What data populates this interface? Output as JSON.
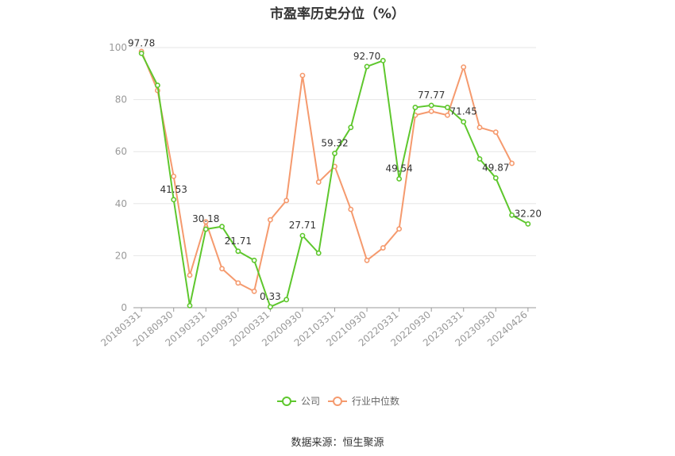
{
  "chart_data": {
    "type": "line",
    "title": "市盈率历史分位（%）",
    "x": [
      "20180331",
      "20180630",
      "20180930",
      "20181231",
      "20190331",
      "20190630",
      "20190930",
      "20191231",
      "20200331",
      "20200630",
      "20200930",
      "20201231",
      "20210331",
      "20210630",
      "20210930",
      "20211231",
      "20220331",
      "20220630",
      "20220930",
      "20221231",
      "20230331",
      "20230630",
      "20230930",
      "20231231",
      "20240426"
    ],
    "x_tick_labels": [
      "20180331",
      "20180930",
      "20190331",
      "20190930",
      "20200331",
      "20200930",
      "20210331",
      "20210930",
      "20220331",
      "20220930",
      "20230331",
      "20230930",
      "20240426"
    ],
    "ylim": [
      0,
      100
    ],
    "y_ticks": [
      0,
      20,
      40,
      60,
      80,
      100
    ],
    "grid": true,
    "series": [
      {
        "name": "公司",
        "color": "#5ec72d",
        "values": [
          97.78,
          85.5,
          41.53,
          0.8,
          30.18,
          31.2,
          21.71,
          18.2,
          0.33,
          3.1,
          27.71,
          21.0,
          59.32,
          69.3,
          92.7,
          95.0,
          49.54,
          77.0,
          77.77,
          77.0,
          71.45,
          57.2,
          49.87,
          35.6,
          32.2
        ]
      },
      {
        "name": "行业中位数",
        "color": "#f59a6e",
        "values": [
          98.5,
          83.5,
          50.5,
          12.5,
          33.0,
          15.0,
          9.5,
          6.3,
          33.8,
          41.2,
          89.3,
          48.3,
          54.3,
          37.8,
          18.2,
          23.0,
          30.3,
          74.0,
          75.5,
          74.0,
          92.5,
          69.3,
          67.5,
          55.5,
          null
        ]
      }
    ],
    "data_labels": [
      {
        "series": 0,
        "index": 0,
        "text": "97.78"
      },
      {
        "series": 0,
        "index": 2,
        "text": "41.53"
      },
      {
        "series": 0,
        "index": 4,
        "text": "30.18"
      },
      {
        "series": 0,
        "index": 6,
        "text": "21.71"
      },
      {
        "series": 0,
        "index": 8,
        "text": "0.33"
      },
      {
        "series": 0,
        "index": 10,
        "text": "27.71"
      },
      {
        "series": 0,
        "index": 12,
        "text": "59.32"
      },
      {
        "series": 0,
        "index": 14,
        "text": "92.70"
      },
      {
        "series": 0,
        "index": 16,
        "text": "49.54"
      },
      {
        "series": 0,
        "index": 18,
        "text": "77.77"
      },
      {
        "series": 0,
        "index": 20,
        "text": "71.45"
      },
      {
        "series": 0,
        "index": 22,
        "text": "49.87"
      },
      {
        "series": 0,
        "index": 24,
        "text": "32.20"
      }
    ],
    "legend_position": "bottom-center"
  },
  "source": "数据来源：恒生聚源"
}
